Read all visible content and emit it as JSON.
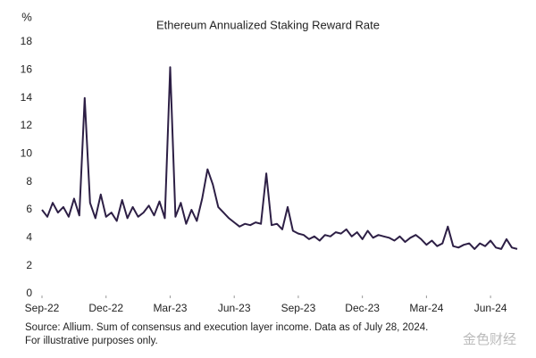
{
  "chart_data": {
    "type": "line",
    "title": "Ethereum Annualized Staking Reward Rate",
    "y_label": "%",
    "source": "Source: Allium. Sum of consensus and execution layer income. Data as of July 28, 2024. For illustrative purposes only.",
    "watermark": "金色财经",
    "x": [
      0,
      0.25,
      0.5,
      0.75,
      1,
      1.25,
      1.5,
      1.75,
      2,
      2.25,
      2.5,
      2.75,
      3,
      3.25,
      3.5,
      3.75,
      4,
      4.25,
      4.5,
      4.75,
      5,
      5.25,
      5.5,
      5.75,
      6,
      6.25,
      6.5,
      6.75,
      7,
      7.25,
      7.5,
      7.75,
      8,
      8.25,
      8.5,
      8.75,
      9,
      9.25,
      9.5,
      9.75,
      10,
      10.25,
      10.5,
      10.75,
      11,
      11.25,
      11.5,
      11.75,
      12,
      12.25,
      12.5,
      12.75,
      13,
      13.25,
      13.5,
      13.75,
      14,
      14.25,
      14.5,
      14.75,
      15,
      15.25,
      15.5,
      15.75,
      16,
      16.25,
      16.5,
      16.75,
      17,
      17.25,
      17.5,
      17.75,
      18,
      18.25,
      18.5,
      18.75,
      19,
      19.25,
      19.5,
      19.75,
      20,
      20.25,
      20.5,
      20.75,
      21,
      21.25,
      21.5,
      21.75,
      22,
      22.25
    ],
    "series": [
      {
        "name": "Staking reward rate",
        "color": "#2d1f45",
        "values": [
          6,
          5.5,
          6.5,
          5.8,
          6.2,
          5.5,
          6.8,
          5.6,
          14,
          6.5,
          5.4,
          7.1,
          5.5,
          5.8,
          5.2,
          6.7,
          5.4,
          6.2,
          5.5,
          5.8,
          6.3,
          5.6,
          6.6,
          5.4,
          16.2,
          5.5,
          6.5,
          5.0,
          6.0,
          5.2,
          6.8,
          8.9,
          7.8,
          6.2,
          5.8,
          5.4,
          5.1,
          4.8,
          5.0,
          4.9,
          5.1,
          5.0,
          8.6,
          4.9,
          5.0,
          4.6,
          6.2,
          4.5,
          4.3,
          4.2,
          3.9,
          4.1,
          3.8,
          4.2,
          4.1,
          4.4,
          4.3,
          4.6,
          4.1,
          4.4,
          3.9,
          4.5,
          4.0,
          4.2,
          4.1,
          4.0,
          3.8,
          4.1,
          3.7,
          4.0,
          4.2,
          3.9,
          3.5,
          3.8,
          3.4,
          3.6,
          4.8,
          3.4,
          3.3,
          3.5,
          3.6,
          3.2,
          3.6,
          3.4,
          3.8,
          3.3,
          3.2,
          3.9,
          3.3,
          3.2
        ]
      }
    ],
    "xlim": [
      0,
      22.25
    ],
    "xticks": [
      {
        "value": 0,
        "label": "Sep-22"
      },
      {
        "value": 3,
        "label": "Dec-22"
      },
      {
        "value": 6,
        "label": "Mar-23"
      },
      {
        "value": 9,
        "label": "Jun-23"
      },
      {
        "value": 12,
        "label": "Sep-23"
      },
      {
        "value": 15,
        "label": "Dec-23"
      },
      {
        "value": 18,
        "label": "Mar-24"
      },
      {
        "value": 21,
        "label": "Jun-24"
      }
    ],
    "ylim": [
      0,
      18
    ],
    "yticks": [
      0,
      2,
      4,
      6,
      8,
      10,
      12,
      14,
      16,
      18
    ],
    "grid": false
  }
}
